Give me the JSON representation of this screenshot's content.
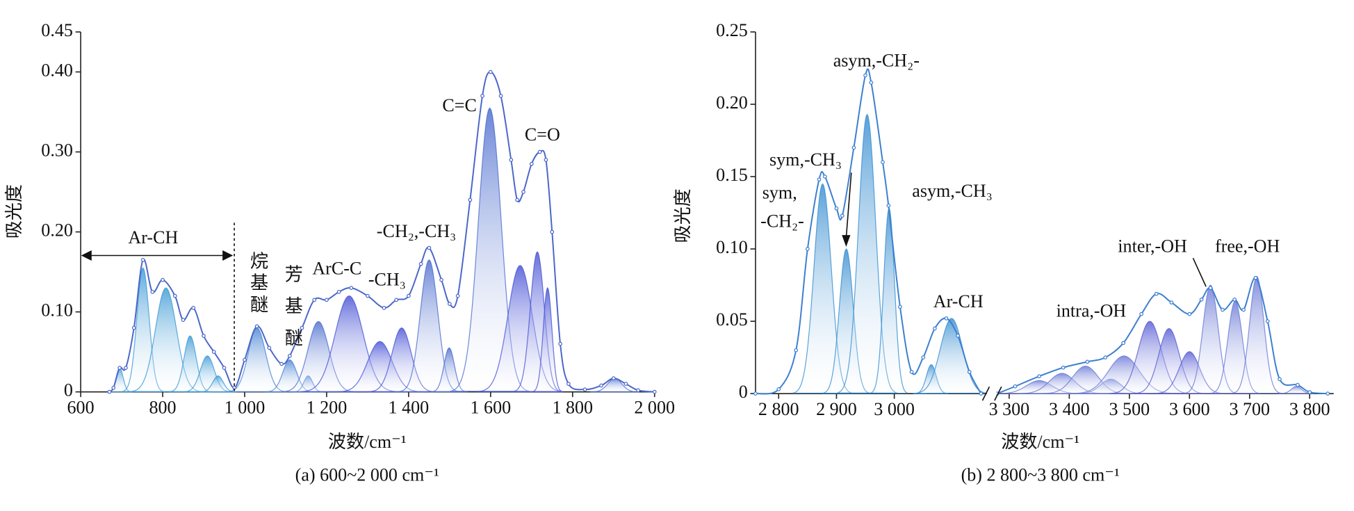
{
  "chart_data": [
    {
      "type": "peak-fit",
      "y_label": "吸光度",
      "x_label": "波数/cm⁻¹",
      "caption": "(a) 600~2 000 cm⁻¹",
      "xlim": [
        600,
        2000
      ],
      "ylim": [
        0,
        0.45
      ],
      "xticks": [
        600,
        800,
        {
          "value": 1000,
          "label": "1 000"
        },
        {
          "value": 1200,
          "label": "1 200"
        },
        {
          "value": 1400,
          "label": "1 400"
        },
        {
          "value": 1600,
          "label": "1 600"
        },
        {
          "value": 1800,
          "label": "1 800"
        },
        {
          "value": 2000,
          "label": "2 000"
        }
      ],
      "yticks": [
        0,
        {
          "value": 0.1,
          "label": "0.10"
        },
        {
          "value": 0.2,
          "label": "0.20"
        },
        {
          "value": 0.3,
          "label": "0.30"
        },
        {
          "value": 0.4,
          "label": "0.40"
        },
        0.45
      ],
      "line_color": "#4b67c9",
      "annotations": [
        "Ar-CH",
        "烷基醚",
        "芳基醚",
        "ArC-C",
        "-CH₃",
        "-CH₂,-CH₃",
        "C=C",
        "C=O"
      ],
      "peaks": [
        {
          "x": 695,
          "y": 0.03,
          "width": 20,
          "color": "#3f9bd6"
        },
        {
          "x": 752,
          "y": 0.155,
          "width": 35,
          "color": "#3f9bd6"
        },
        {
          "x": 808,
          "y": 0.13,
          "width": 60,
          "color": "#3f9bd6"
        },
        {
          "x": 867,
          "y": 0.07,
          "width": 35,
          "color": "#3f9bd6"
        },
        {
          "x": 909,
          "y": 0.045,
          "width": 40,
          "color": "#3f9bd6"
        },
        {
          "x": 935,
          "y": 0.02,
          "width": 30,
          "color": "#3f9bd6"
        },
        {
          "x": 1030,
          "y": 0.08,
          "width": 50,
          "color": "#4a86d3"
        },
        {
          "x": 1110,
          "y": 0.04,
          "width": 40,
          "color": "#4a86d3"
        },
        {
          "x": 1155,
          "y": 0.02,
          "width": 25,
          "color": "#4a86d3"
        },
        {
          "x": 1180,
          "y": 0.088,
          "width": 60,
          "color": "#4f6fcf"
        },
        {
          "x": 1255,
          "y": 0.12,
          "width": 80,
          "color": "#4a55d6"
        },
        {
          "x": 1330,
          "y": 0.063,
          "width": 70,
          "color": "#4a55d6"
        },
        {
          "x": 1383,
          "y": 0.08,
          "width": 55,
          "color": "#4a55d6"
        },
        {
          "x": 1450,
          "y": 0.165,
          "width": 50,
          "color": "#4f6fcf"
        },
        {
          "x": 1499,
          "y": 0.055,
          "width": 30,
          "color": "#4f6fcf"
        },
        {
          "x": 1598,
          "y": 0.355,
          "width": 65,
          "color": "#4f6fcf"
        },
        {
          "x": 1672,
          "y": 0.158,
          "width": 70,
          "color": "#4a55d6"
        },
        {
          "x": 1714,
          "y": 0.175,
          "width": 40,
          "color": "#4a55d6"
        },
        {
          "x": 1739,
          "y": 0.13,
          "width": 25,
          "color": "#4a55d6"
        },
        {
          "x": 1903,
          "y": 0.017,
          "width": 40,
          "color": "#4f6fcf"
        }
      ],
      "spectrum": {
        "x": [
          670,
          680,
          695,
          710,
          730,
          752,
          775,
          800,
          830,
          850,
          875,
          900,
          925,
          950,
          975,
          1000,
          1030,
          1060,
          1090,
          1110,
          1140,
          1170,
          1200,
          1230,
          1260,
          1300,
          1340,
          1370,
          1400,
          1430,
          1450,
          1480,
          1500,
          1520,
          1550,
          1580,
          1600,
          1625,
          1650,
          1665,
          1680,
          1700,
          1720,
          1735,
          1750,
          1770,
          1790,
          1830,
          1870,
          1900,
          1930,
          1960,
          2000
        ],
        "values": [
          0,
          0.005,
          0.03,
          0.03,
          0.08,
          0.165,
          0.125,
          0.14,
          0.12,
          0.09,
          0.105,
          0.07,
          0.05,
          0.03,
          0.005,
          0.04,
          0.082,
          0.055,
          0.035,
          0.045,
          0.08,
          0.115,
          0.115,
          0.125,
          0.13,
          0.12,
          0.105,
          0.115,
          0.12,
          0.16,
          0.18,
          0.14,
          0.11,
          0.12,
          0.24,
          0.37,
          0.4,
          0.37,
          0.29,
          0.24,
          0.25,
          0.285,
          0.3,
          0.29,
          0.2,
          0.06,
          0.01,
          0.003,
          0.008,
          0.017,
          0.01,
          0.002,
          0
        ]
      }
    },
    {
      "type": "peak-fit",
      "y_label": "吸光度",
      "x_label": "波数/cm⁻¹",
      "caption": "(b) 2 800~3 800 cm⁻¹",
      "xlim": [
        2760,
        3840
      ],
      "xbreak": [
        3160,
        3280
      ],
      "ylim": [
        0,
        0.25
      ],
      "xticks": [
        {
          "value": 2800,
          "label": "2 800"
        },
        {
          "value": 2900,
          "label": "2 900"
        },
        {
          "value": 3000,
          "label": "3 000"
        },
        {
          "value": 3300,
          "label": "3 300"
        },
        {
          "value": 3400,
          "label": "3 400"
        },
        {
          "value": 3500,
          "label": "3 500"
        },
        {
          "value": 3600,
          "label": "3 600"
        },
        {
          "value": 3700,
          "label": "3 700"
        },
        {
          "value": 3800,
          "label": "3 800"
        }
      ],
      "yticks": [
        0,
        0.05,
        {
          "value": 0.1,
          "label": "0.10"
        },
        0.15,
        {
          "value": 0.2,
          "label": "0.20"
        },
        0.25
      ],
      "line_color": "#3d7fcf",
      "annotations": [
        "asym,-CH₂-",
        "sym,-CH₃",
        "sym,",
        "-CH₂-",
        "asym,-CH₃",
        "Ar-CH",
        "intra,-OH",
        "inter,-OH",
        "free,-OH"
      ],
      "peaks": [
        {
          "x": 2876,
          "y": 0.145,
          "width": 35,
          "color": "#3b90d2"
        },
        {
          "x": 2917,
          "y": 0.1,
          "width": 28,
          "color": "#3b90d2"
        },
        {
          "x": 2953,
          "y": 0.193,
          "width": 35,
          "color": "#3b90d2"
        },
        {
          "x": 2991,
          "y": 0.128,
          "width": 22,
          "color": "#3b90d2"
        },
        {
          "x": 3064,
          "y": 0.02,
          "width": 20,
          "color": "#3b90d2"
        },
        {
          "x": 3099,
          "y": 0.052,
          "width": 45,
          "color": "#3b90d2"
        },
        {
          "x": 3350,
          "y": 0.009,
          "width": 50,
          "color": "#6b7ad6"
        },
        {
          "x": 3388,
          "y": 0.014,
          "width": 50,
          "color": "#6b7ad6"
        },
        {
          "x": 3427,
          "y": 0.019,
          "width": 50,
          "color": "#6b7ad6"
        },
        {
          "x": 3469,
          "y": 0.01,
          "width": 40,
          "color": "#6b7ad6"
        },
        {
          "x": 3491,
          "y": 0.026,
          "width": 60,
          "color": "#6b7ad6"
        },
        {
          "x": 3534,
          "y": 0.05,
          "width": 45,
          "color": "#5a5fd4"
        },
        {
          "x": 3566,
          "y": 0.045,
          "width": 40,
          "color": "#5a5fd4"
        },
        {
          "x": 3600,
          "y": 0.029,
          "width": 40,
          "color": "#5a5fd4"
        },
        {
          "x": 3635,
          "y": 0.075,
          "width": 30,
          "color": "#6b7ad6"
        },
        {
          "x": 3676,
          "y": 0.064,
          "width": 28,
          "color": "#6b7ad6"
        },
        {
          "x": 3712,
          "y": 0.081,
          "width": 28,
          "color": "#6b7ad6"
        },
        {
          "x": 3778,
          "y": 0.005,
          "width": 20,
          "color": "#6b7ad6"
        }
      ],
      "spectrum": {
        "x": [
          2760,
          2800,
          2830,
          2850,
          2870,
          2880,
          2900,
          2910,
          2930,
          2950,
          2960,
          2980,
          2990,
          3010,
          3030,
          3050,
          3070,
          3090,
          3110,
          3130,
          3150,
          3280,
          3310,
          3350,
          3390,
          3430,
          3460,
          3490,
          3520,
          3545,
          3570,
          3600,
          3620,
          3635,
          3655,
          3675,
          3690,
          3710,
          3730,
          3750,
          3780,
          3800,
          3830
        ],
        "values": [
          0,
          0.003,
          0.03,
          0.1,
          0.148,
          0.15,
          0.128,
          0.123,
          0.17,
          0.22,
          0.215,
          0.16,
          0.13,
          0.06,
          0.015,
          0.025,
          0.045,
          0.052,
          0.04,
          0.015,
          0,
          0,
          0.005,
          0.012,
          0.018,
          0.022,
          0.025,
          0.035,
          0.055,
          0.069,
          0.063,
          0.055,
          0.065,
          0.073,
          0.058,
          0.065,
          0.058,
          0.08,
          0.05,
          0.01,
          0.006,
          0.001,
          0
        ]
      }
    }
  ]
}
